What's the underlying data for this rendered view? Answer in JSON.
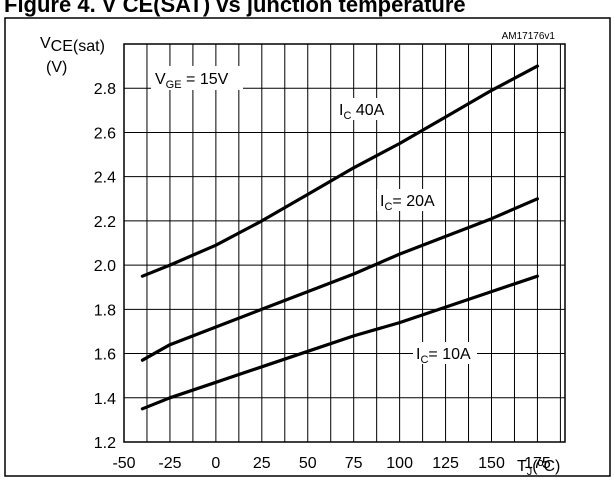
{
  "figure": {
    "title_fragment": "Figure 4. V CE(SAT) vs junction temperature",
    "code": "AM17176v1"
  },
  "chart_data": {
    "type": "line",
    "ylabel_main": "V",
    "ylabel_sub": "CE(sat)",
    "ylabel_unit": "(V)",
    "xlabel_main": "T",
    "xlabel_sub": "J",
    "xlabel_unit": "(ºC)",
    "xlim": [
      -50,
      190
    ],
    "ylim": [
      1.2,
      3.0
    ],
    "x_ticks": [
      -50,
      -25,
      0,
      25,
      50,
      75,
      100,
      125,
      150,
      175
    ],
    "x_tick_labels": [
      "-50",
      "-25",
      "0",
      "25",
      "50",
      "75",
      "100",
      "125",
      "150",
      "175"
    ],
    "y_ticks": [
      1.2,
      1.4,
      1.6,
      1.8,
      2.0,
      2.2,
      2.4,
      2.6,
      2.8
    ],
    "y_tick_labels": [
      "1.2",
      "1.4",
      "1.6",
      "1.8",
      "2.0",
      "2.2",
      "2.4",
      "2.6",
      "2.8"
    ],
    "grid": true,
    "condition": {
      "main": "V",
      "sub": "GE",
      "value": " = 15V"
    },
    "series": [
      {
        "name_main": "I",
        "name_sub": "C",
        "name_value": " 40A",
        "x": [
          -40,
          -25,
          0,
          25,
          50,
          75,
          100,
          125,
          150,
          175
        ],
        "y": [
          1.95,
          2.0,
          2.09,
          2.2,
          2.32,
          2.44,
          2.55,
          2.67,
          2.79,
          2.9
        ]
      },
      {
        "name_main": "I",
        "name_sub": "C",
        "name_value": "= 20A",
        "x": [
          -40,
          -25,
          0,
          25,
          50,
          75,
          100,
          125,
          150,
          175
        ],
        "y": [
          1.57,
          1.64,
          1.72,
          1.8,
          1.88,
          1.96,
          2.05,
          2.13,
          2.21,
          2.3
        ]
      },
      {
        "name_main": "I",
        "name_sub": "C",
        "name_value": "= 10A",
        "x": [
          -40,
          -25,
          0,
          25,
          50,
          75,
          100,
          125,
          150,
          175
        ],
        "y": [
          1.35,
          1.4,
          1.47,
          1.54,
          1.61,
          1.68,
          1.74,
          1.81,
          1.88,
          1.95
        ]
      }
    ]
  }
}
